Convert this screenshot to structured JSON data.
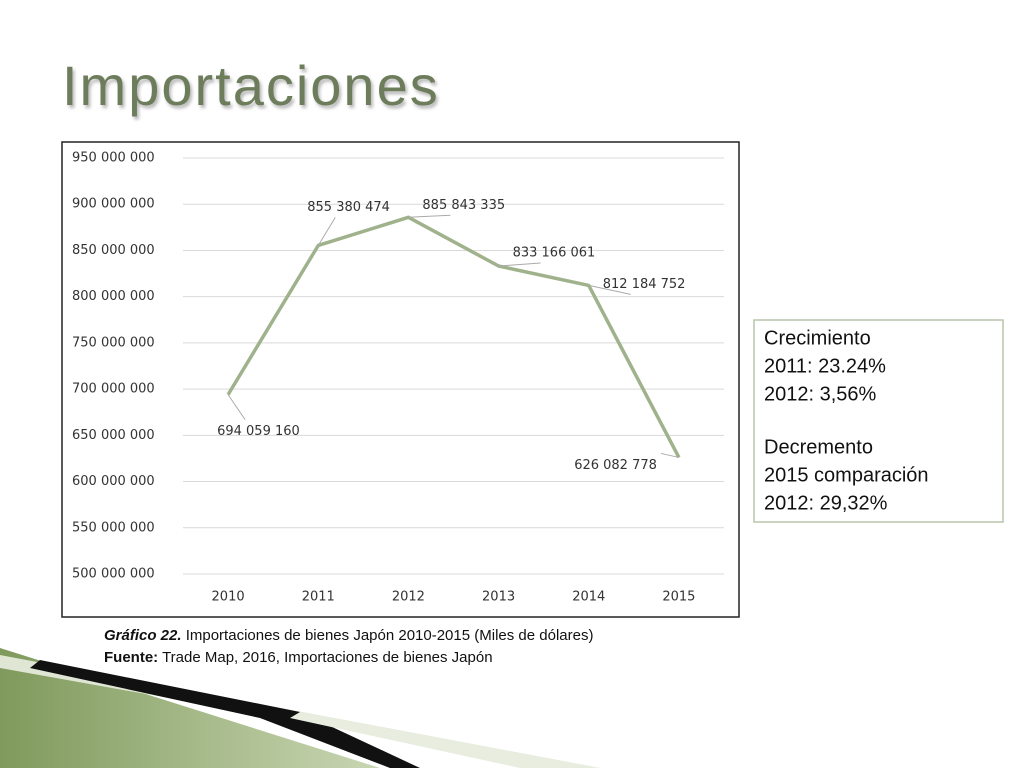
{
  "title": "Importaciones",
  "chart_data": {
    "type": "line",
    "categories": [
      "2010",
      "2011",
      "2012",
      "2013",
      "2014",
      "2015"
    ],
    "values": [
      694059160,
      855380474,
      885843335,
      833166061,
      812184752,
      626082778
    ],
    "value_labels": [
      "694 059 160",
      "855 380 474",
      "885 843 335",
      "833 166 061",
      "812 184 752",
      "626 082 778"
    ],
    "color": "#9fb28c",
    "ylim": [
      500000000,
      950000000
    ],
    "yticks": [
      {
        "value": 500000000,
        "label": "500 000 000"
      },
      {
        "value": 550000000,
        "label": "550 000 000"
      },
      {
        "value": 600000000,
        "label": "600 000 000"
      },
      {
        "value": 650000000,
        "label": "650 000 000"
      },
      {
        "value": 700000000,
        "label": "700 000 000"
      },
      {
        "value": 750000000,
        "label": "750 000 000"
      },
      {
        "value": 800000000,
        "label": "800 000 000"
      },
      {
        "value": 850000000,
        "label": "850 000 000"
      },
      {
        "value": 900000000,
        "label": "900 000 000"
      },
      {
        "value": 950000000,
        "label": "950 000 000"
      }
    ],
    "grid": true
  },
  "note": {
    "growth": [
      "Crecimiento",
      "2011: 23.24%",
      "2012: 3,56%"
    ],
    "decline": [
      "Decremento",
      "2015 comparación",
      "2012: 29,32%"
    ]
  },
  "caption": {
    "figure_label": "Gráfico 22.",
    "figure_text": " Importaciones de bienes Japón 2010-2015 (Miles de dólares)",
    "source_label": "Fuente:",
    "source_text": " Trade Map, 2016, Importaciones de bienes Japón"
  }
}
